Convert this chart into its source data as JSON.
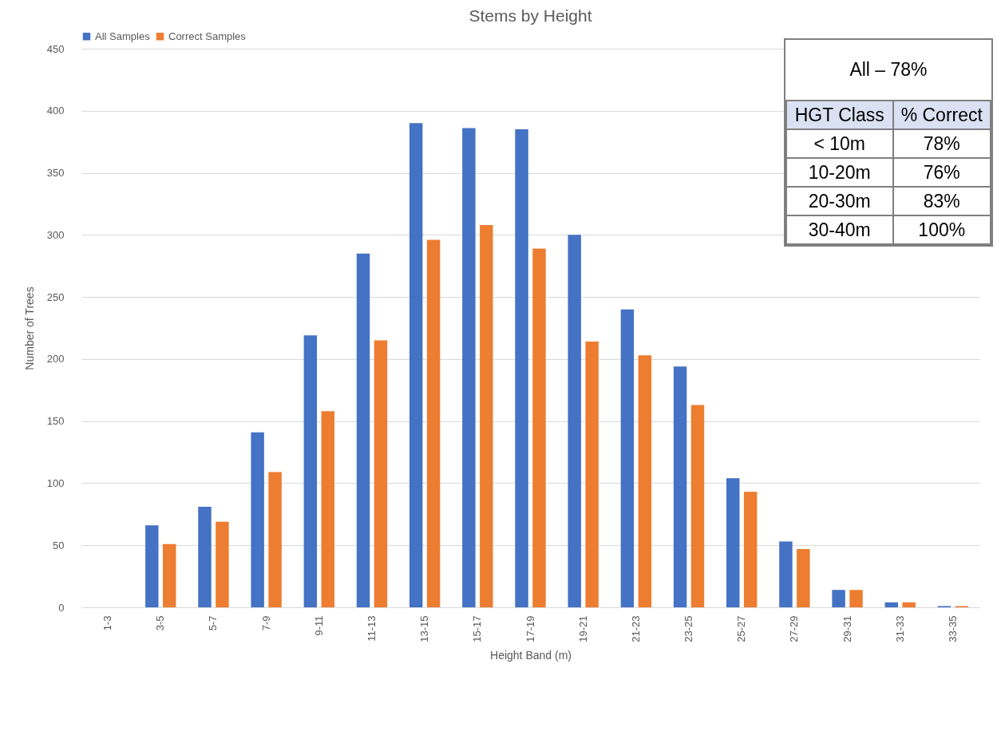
{
  "chart_data": [
    {
      "type": "bar",
      "title": "Stems by Height",
      "xlabel": "Height Band (m)",
      "ylabel": "Number of Trees",
      "categories": [
        "1-3",
        "3-5",
        "5-7",
        "7-9",
        "9-11",
        "11-13",
        "13-15",
        "15-17",
        "17-19",
        "19-21",
        "21-23",
        "23-25",
        "25-27",
        "27-29",
        "29-31",
        "31-33",
        "33-35"
      ],
      "series": [
        {
          "name": "All Samples",
          "color": "#4472c4",
          "values": [
            0,
            66,
            81,
            141,
            219,
            285,
            390,
            386,
            385,
            300,
            240,
            194,
            104,
            53,
            14,
            4,
            1
          ]
        },
        {
          "name": "Correct Samples",
          "color": "#ed7d31",
          "values": [
            0,
            51,
            69,
            109,
            158,
            215,
            296,
            308,
            289,
            214,
            203,
            163,
            93,
            47,
            14,
            4,
            1
          ]
        }
      ],
      "ylim": [
        0,
        450
      ],
      "yticks": [
        0,
        50,
        100,
        150,
        200,
        250,
        300,
        350,
        400,
        450
      ],
      "grid": "y",
      "legend": "top"
    },
    {
      "type": "other",
      "title": "All – 78%",
      "annotations": [
        "HGT Class",
        "% Correct",
        "< 10m",
        "78%",
        "10-20m",
        "76%",
        "20-30m",
        "83%",
        "30-40m",
        "100%"
      ]
    }
  ]
}
